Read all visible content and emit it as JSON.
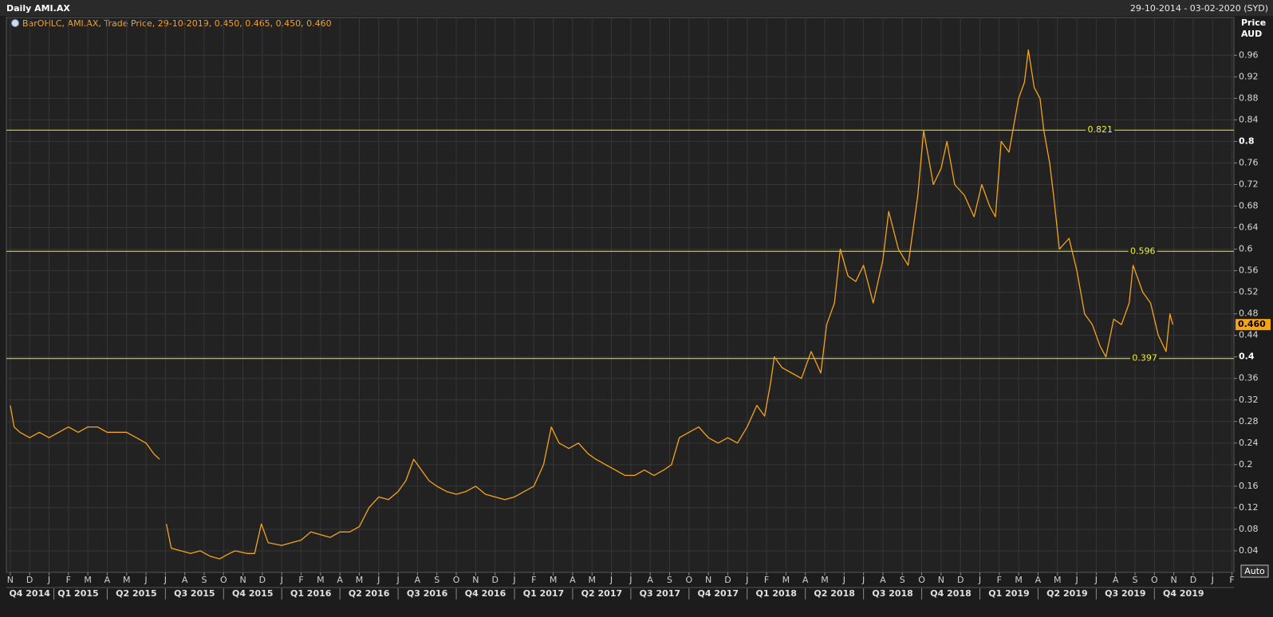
{
  "header": {
    "title": "Daily AMI.AX",
    "range": "29-10-2014 - 03-02-2020 (SYD)",
    "legend": "BarOHLC, AMI.AX, Trade Price, 29-10-2019, 0.450, 0.465, 0.450, 0.460",
    "button": "Auto"
  },
  "chart_data": {
    "type": "line",
    "y_axis_label": [
      "Price",
      "AUD"
    ],
    "xlim": [
      -0.2,
      63.1
    ],
    "ylim": [
      0,
      1.03
    ],
    "yticks": [
      0.04,
      0.08,
      0.12,
      0.16,
      0.2,
      0.24,
      0.28,
      0.32,
      0.36,
      0.4,
      0.44,
      0.48,
      0.52,
      0.56,
      0.6,
      0.64,
      0.68,
      0.72,
      0.76,
      0.8,
      0.84,
      0.88,
      0.92,
      0.96
    ],
    "xticks": [
      {
        "value": 0,
        "label": "N"
      },
      {
        "value": 1,
        "label": "D"
      },
      {
        "value": 2,
        "label": "J"
      },
      {
        "value": 3,
        "label": "F"
      },
      {
        "value": 4,
        "label": "M"
      },
      {
        "value": 5,
        "label": "A"
      },
      {
        "value": 6,
        "label": "M"
      },
      {
        "value": 7,
        "label": "J"
      },
      {
        "value": 8,
        "label": "J"
      },
      {
        "value": 9,
        "label": "A"
      },
      {
        "value": 10,
        "label": "S"
      },
      {
        "value": 11,
        "label": "O"
      },
      {
        "value": 12,
        "label": "N"
      },
      {
        "value": 13,
        "label": "D"
      },
      {
        "value": 14,
        "label": "J"
      },
      {
        "value": 15,
        "label": "F"
      },
      {
        "value": 16,
        "label": "M"
      },
      {
        "value": 17,
        "label": "A"
      },
      {
        "value": 18,
        "label": "M"
      },
      {
        "value": 19,
        "label": "J"
      },
      {
        "value": 20,
        "label": "J"
      },
      {
        "value": 21,
        "label": "A"
      },
      {
        "value": 22,
        "label": "S"
      },
      {
        "value": 23,
        "label": "O"
      },
      {
        "value": 24,
        "label": "N"
      },
      {
        "value": 25,
        "label": "D"
      },
      {
        "value": 26,
        "label": "J"
      },
      {
        "value": 27,
        "label": "F"
      },
      {
        "value": 28,
        "label": "M"
      },
      {
        "value": 29,
        "label": "A"
      },
      {
        "value": 30,
        "label": "M"
      },
      {
        "value": 31,
        "label": "J"
      },
      {
        "value": 32,
        "label": "J"
      },
      {
        "value": 33,
        "label": "A"
      },
      {
        "value": 34,
        "label": "S"
      },
      {
        "value": 35,
        "label": "O"
      },
      {
        "value": 36,
        "label": "N"
      },
      {
        "value": 37,
        "label": "D"
      },
      {
        "value": 38,
        "label": "J"
      },
      {
        "value": 39,
        "label": "F"
      },
      {
        "value": 40,
        "label": "M"
      },
      {
        "value": 41,
        "label": "A"
      },
      {
        "value": 42,
        "label": "M"
      },
      {
        "value": 43,
        "label": "J"
      },
      {
        "value": 44,
        "label": "J"
      },
      {
        "value": 45,
        "label": "A"
      },
      {
        "value": 46,
        "label": "S"
      },
      {
        "value": 47,
        "label": "O"
      },
      {
        "value": 48,
        "label": "N"
      },
      {
        "value": 49,
        "label": "D"
      },
      {
        "value": 50,
        "label": "J"
      },
      {
        "value": 51,
        "label": "F"
      },
      {
        "value": 52,
        "label": "M"
      },
      {
        "value": 53,
        "label": "A"
      },
      {
        "value": 54,
        "label": "M"
      },
      {
        "value": 55,
        "label": "J"
      },
      {
        "value": 56,
        "label": "J"
      },
      {
        "value": 57,
        "label": "A"
      },
      {
        "value": 58,
        "label": "S"
      },
      {
        "value": 59,
        "label": "O"
      },
      {
        "value": 60,
        "label": "N"
      },
      {
        "value": 61,
        "label": "D"
      },
      {
        "value": 62,
        "label": "J"
      },
      {
        "value": 63,
        "label": "F"
      }
    ],
    "quarters": [
      {
        "value": 1,
        "label": "Q4 2014"
      },
      {
        "value": 3.5,
        "label": "Q1 2015"
      },
      {
        "value": 6.5,
        "label": "Q2 2015"
      },
      {
        "value": 9.5,
        "label": "Q3 2015"
      },
      {
        "value": 12.5,
        "label": "Q4 2015"
      },
      {
        "value": 15.5,
        "label": "Q1 2016"
      },
      {
        "value": 18.5,
        "label": "Q2 2016"
      },
      {
        "value": 21.5,
        "label": "Q3 2016"
      },
      {
        "value": 24.5,
        "label": "Q4 2016"
      },
      {
        "value": 27.5,
        "label": "Q1 2017"
      },
      {
        "value": 30.5,
        "label": "Q2 2017"
      },
      {
        "value": 33.5,
        "label": "Q3 2017"
      },
      {
        "value": 36.5,
        "label": "Q4 2017"
      },
      {
        "value": 39.5,
        "label": "Q1 2018"
      },
      {
        "value": 42.5,
        "label": "Q2 2018"
      },
      {
        "value": 45.5,
        "label": "Q3 2018"
      },
      {
        "value": 48.5,
        "label": "Q4 2018"
      },
      {
        "value": 51.5,
        "label": "Q1 2019"
      },
      {
        "value": 54.5,
        "label": "Q2 2019"
      },
      {
        "value": 57.5,
        "label": "Q3 2019"
      },
      {
        "value": 60.5,
        "label": "Q4 2019"
      }
    ],
    "grid": true,
    "series": [
      {
        "name": "AMI.AX",
        "color": "#f5a31a",
        "x": [
          0,
          0.2,
          0.5,
          1,
          1.5,
          2,
          2.5,
          3,
          3.5,
          4,
          4.5,
          5,
          5.5,
          6,
          6.5,
          7,
          7.4,
          7.7,
          7.9,
          8.05,
          8.3,
          8.8,
          9.3,
          9.8,
          10.3,
          10.8,
          11.3,
          11.6,
          12.2,
          12.6,
          12.95,
          13.3,
          14,
          14.5,
          15,
          15.5,
          16,
          16.5,
          17,
          17.5,
          18,
          18.5,
          19,
          19.5,
          20,
          20.4,
          20.8,
          21.2,
          21.6,
          22,
          22.5,
          23,
          23.5,
          24,
          24.5,
          25,
          25.5,
          26,
          26.5,
          27,
          27.5,
          27.9,
          28.3,
          28.8,
          29.3,
          29.8,
          30.2,
          30.7,
          31.2,
          31.7,
          32.2,
          32.7,
          33.2,
          33.7,
          34.1,
          34.5,
          35,
          35.5,
          36,
          36.5,
          37,
          37.5,
          38,
          38.5,
          38.9,
          39.2,
          39.4,
          39.8,
          40.3,
          40.8,
          41.3,
          41.8,
          42.1,
          42.5,
          42.8,
          43.2,
          43.6,
          44,
          44.5,
          45,
          45.3,
          45.8,
          46.3,
          46.8,
          47.1,
          47.6,
          48,
          48.3,
          48.7,
          49.2,
          49.7,
          50.1,
          50.5,
          50.8,
          51.1,
          51.5,
          52,
          52.3,
          52.5,
          52.8,
          53.1,
          53.3,
          53.6,
          53.8,
          54.1,
          54.6,
          55,
          55.4,
          55.8,
          56.2,
          56.5,
          56.9,
          57.3,
          57.7,
          57.9,
          58.4,
          58.8,
          59.2,
          59.6,
          59.8,
          59.95
        ],
        "values": [
          0.31,
          0.27,
          0.26,
          0.25,
          0.26,
          0.25,
          0.26,
          0.27,
          0.26,
          0.27,
          0.27,
          0.26,
          0.26,
          0.26,
          0.25,
          0.24,
          0.22,
          0.21,
          null,
          0.09,
          0.045,
          0.04,
          0.035,
          0.04,
          0.03,
          0.025,
          0.035,
          0.04,
          0.035,
          0.035,
          0.09,
          0.055,
          0.05,
          0.055,
          0.06,
          0.075,
          0.07,
          0.065,
          0.075,
          0.075,
          0.085,
          0.12,
          0.14,
          0.135,
          0.15,
          0.17,
          0.21,
          0.19,
          0.17,
          0.16,
          0.15,
          0.145,
          0.15,
          0.16,
          0.145,
          0.14,
          0.135,
          0.14,
          0.15,
          0.16,
          0.2,
          0.27,
          0.24,
          0.23,
          0.24,
          0.22,
          0.21,
          0.2,
          0.19,
          0.18,
          0.18,
          0.19,
          0.18,
          0.19,
          0.2,
          0.25,
          0.26,
          0.27,
          0.25,
          0.24,
          0.25,
          0.24,
          0.27,
          0.31,
          0.29,
          0.35,
          0.4,
          0.38,
          0.37,
          0.36,
          0.41,
          0.37,
          0.46,
          0.5,
          0.6,
          0.55,
          0.54,
          0.57,
          0.5,
          0.58,
          0.67,
          0.6,
          0.57,
          0.7,
          0.82,
          0.72,
          0.75,
          0.8,
          0.72,
          0.7,
          0.66,
          0.72,
          0.68,
          0.66,
          0.8,
          0.78,
          0.88,
          0.91,
          0.97,
          0.9,
          0.88,
          0.82,
          0.76,
          0.7,
          0.6,
          0.62,
          0.56,
          0.48,
          0.46,
          0.42,
          0.4,
          0.47,
          0.46,
          0.5,
          0.57,
          0.52,
          0.5,
          0.44,
          0.41,
          0.48,
          0.46
        ]
      }
    ],
    "hlines": [
      0.821,
      0.596,
      0.397
    ],
    "hline_color": "#eeee22",
    "last_price": {
      "value": 0.46,
      "label": "0.460"
    }
  }
}
